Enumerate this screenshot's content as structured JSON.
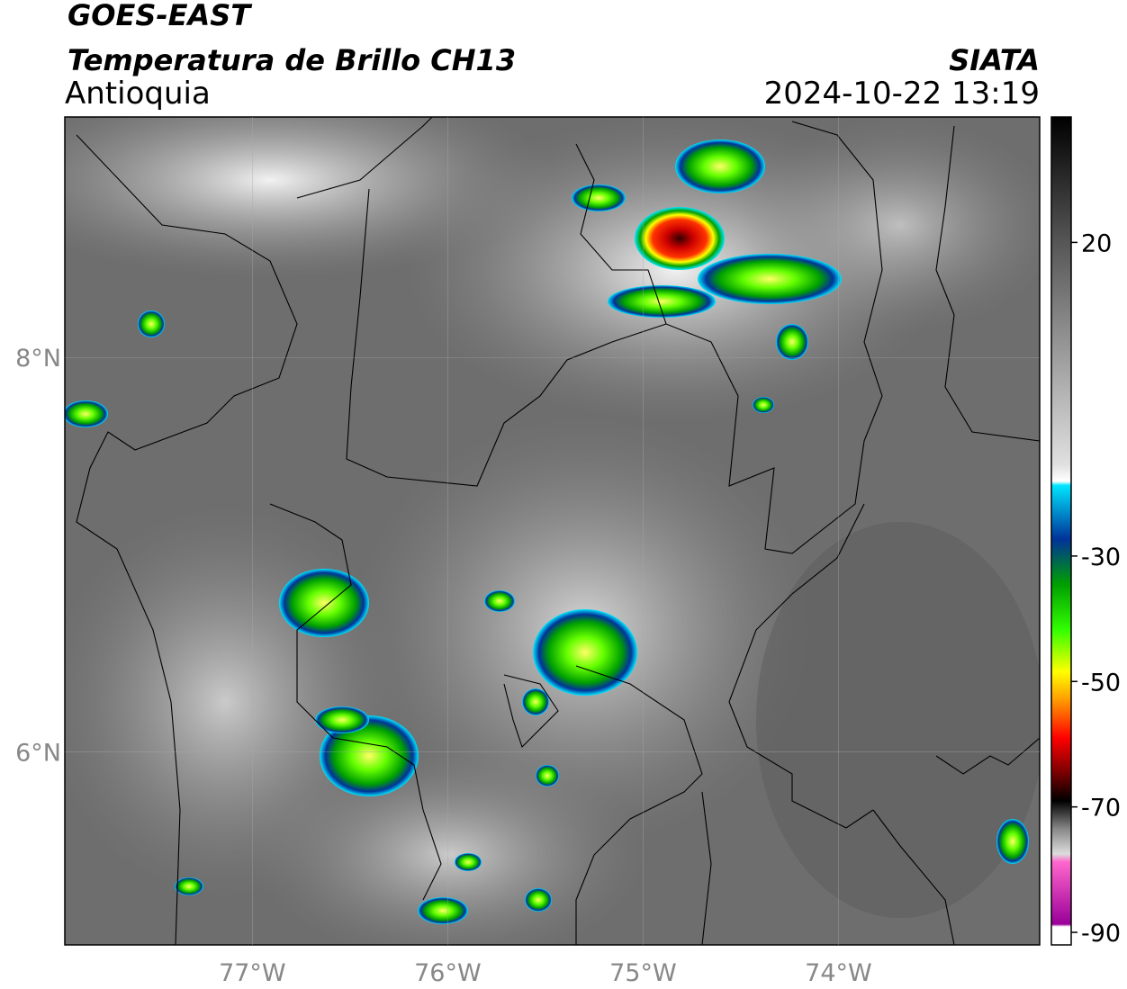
{
  "header": {
    "title": "GOES-EAST",
    "subtitle": "Temperatura de Brillo CH13",
    "region": "Antioquia",
    "source": "SIATA",
    "datetime": "2024-10-22 13:19"
  },
  "map": {
    "xlim": [
      -77.96,
      -72.97
    ],
    "ylim": [
      5.02,
      9.22
    ],
    "xticks": [
      {
        "value": -77,
        "label": "77°W"
      },
      {
        "value": -76,
        "label": "76°W"
      },
      {
        "value": -75,
        "label": "75°W"
      },
      {
        "value": -74,
        "label": "74°W"
      }
    ],
    "yticks": [
      {
        "value": 6,
        "label": "6°N"
      },
      {
        "value": 8,
        "label": "8°N"
      }
    ],
    "grid": true
  },
  "colorbar": {
    "lim": [
      40,
      -92
    ],
    "ticks": [
      20,
      -30,
      -50,
      -70,
      -90
    ]
  }
}
